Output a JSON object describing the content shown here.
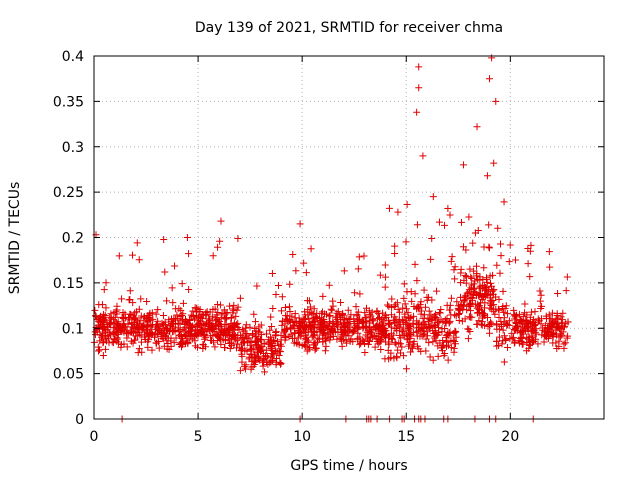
{
  "chart_data": {
    "type": "scatter",
    "title": "Day 139 of 2021, SRMTID for receiver chma",
    "xlabel": "GPS time / hours",
    "ylabel": "SRMTID / TECUs",
    "xlim": [
      0,
      24.5
    ],
    "ylim": [
      0,
      0.4
    ],
    "xticks": [
      0,
      5,
      10,
      15,
      20
    ],
    "yticks": [
      0,
      0.05,
      0.1,
      0.15,
      0.2,
      0.25,
      0.3,
      0.35,
      0.4
    ],
    "xtick_labels": [
      "0",
      "5",
      "10",
      "15",
      "20"
    ],
    "ytick_labels": [
      "0",
      "0.05",
      "0.1",
      "0.15",
      "0.2",
      "0.25",
      "0.3",
      "0.35",
      "0.4"
    ],
    "grid": true,
    "marker": "plus",
    "color": "#e00000",
    "n_points": 1900,
    "dense_band": {
      "x_range": [
        0,
        22.8
      ],
      "typical_y_range": [
        0.05,
        0.15
      ],
      "center_y": 0.1
    },
    "notable_points": [
      {
        "x": 15.6,
        "y": 0.388
      },
      {
        "x": 15.6,
        "y": 0.365
      },
      {
        "x": 15.5,
        "y": 0.338
      },
      {
        "x": 15.8,
        "y": 0.29
      },
      {
        "x": 18.4,
        "y": 0.322
      },
      {
        "x": 19.1,
        "y": 0.398
      },
      {
        "x": 19.0,
        "y": 0.375
      },
      {
        "x": 19.3,
        "y": 0.35
      },
      {
        "x": 19.2,
        "y": 0.282
      },
      {
        "x": 18.9,
        "y": 0.268
      },
      {
        "x": 6.1,
        "y": 0.218
      },
      {
        "x": 9.9,
        "y": 0.215
      },
      {
        "x": 14.6,
        "y": 0.228
      },
      {
        "x": 16.3,
        "y": 0.245
      },
      {
        "x": 17.0,
        "y": 0.232
      }
    ],
    "zero_points_x": [
      1.35,
      9.9,
      12.1,
      13.1,
      13.2,
      13.3,
      13.6,
      14.2,
      14.8,
      14.9,
      15.4,
      15.6,
      15.7,
      15.9,
      16.8,
      17.0,
      18.3,
      19.0,
      19.3,
      21.1
    ]
  }
}
